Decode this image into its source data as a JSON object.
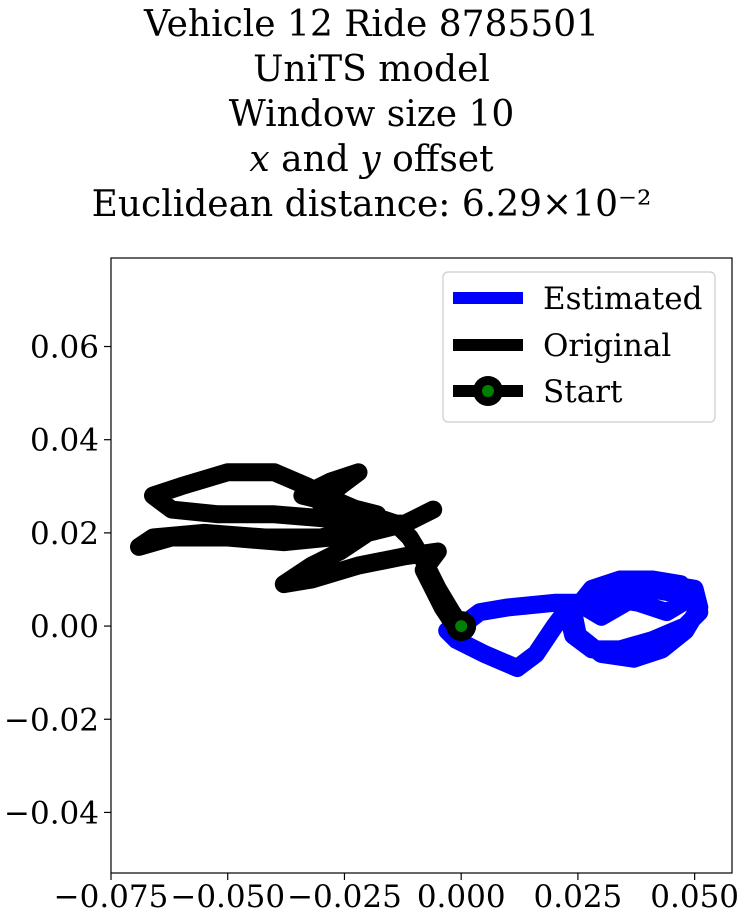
{
  "chart_data": {
    "type": "line",
    "title_lines": [
      "Vehicle 12 Ride 8785501",
      "UniTS model",
      "Window size 10",
      "x and y offset",
      "Euclidean distance: 6.29×10⁻²"
    ],
    "xlim": [
      -0.075,
      0.058
    ],
    "ylim": [
      -0.053,
      0.079
    ],
    "xticks": [
      -0.075,
      -0.05,
      -0.025,
      0.0,
      0.025,
      0.05
    ],
    "xtick_labels": [
      "−0.075",
      "−0.050",
      "−0.025",
      "0.000",
      "0.025",
      "0.050"
    ],
    "yticks": [
      -0.04,
      -0.02,
      0.0,
      0.02,
      0.04,
      0.06
    ],
    "ytick_labels": [
      "−0.04",
      "−0.02",
      "0.00",
      "0.02",
      "0.04",
      "0.06"
    ],
    "grid": false,
    "legend": {
      "placement": "top-right",
      "entries": [
        "Estimated",
        "Original",
        "Start"
      ]
    },
    "series": [
      {
        "name": "Estimated",
        "color": "#0000ff",
        "points": [
          [
            0.0,
            0.0
          ],
          [
            -0.003,
            -0.001
          ],
          [
            -0.001,
            -0.003
          ],
          [
            0.005,
            -0.006
          ],
          [
            0.012,
            -0.009
          ],
          [
            0.016,
            -0.006
          ],
          [
            0.02,
            0.0
          ],
          [
            0.023,
            0.004
          ],
          [
            0.028,
            0.006
          ],
          [
            0.034,
            0.008
          ],
          [
            0.04,
            0.008
          ],
          [
            0.046,
            0.007
          ],
          [
            0.05,
            0.005
          ],
          [
            0.051,
            0.003
          ],
          [
            0.048,
            0.0
          ],
          [
            0.041,
            -0.003
          ],
          [
            0.034,
            -0.005
          ],
          [
            0.028,
            -0.005
          ],
          [
            0.024,
            -0.002
          ],
          [
            0.023,
            0.002
          ],
          [
            0.026,
            0.005
          ],
          [
            0.032,
            0.006
          ],
          [
            0.038,
            0.005
          ],
          [
            0.044,
            0.003
          ],
          [
            0.049,
            0.006
          ],
          [
            0.047,
            0.009
          ],
          [
            0.041,
            0.01
          ],
          [
            0.034,
            0.01
          ],
          [
            0.028,
            0.008
          ],
          [
            0.024,
            0.003
          ],
          [
            0.025,
            -0.002
          ],
          [
            0.03,
            -0.006
          ],
          [
            0.037,
            -0.007
          ],
          [
            0.043,
            -0.005
          ],
          [
            0.048,
            -0.001
          ],
          [
            0.051,
            0.004
          ],
          [
            0.05,
            0.008
          ],
          [
            0.044,
            0.009
          ],
          [
            0.037,
            0.006
          ],
          [
            0.03,
            0.002
          ],
          [
            0.025,
            0.005
          ],
          [
            0.02,
            0.005
          ],
          [
            0.01,
            0.004
          ],
          [
            0.004,
            0.003
          ],
          [
            0.0,
            0.0
          ]
        ]
      },
      {
        "name": "Original",
        "color": "#000000",
        "points": [
          [
            0.0,
            0.0
          ],
          [
            -0.002,
            0.003
          ],
          [
            -0.005,
            0.008
          ],
          [
            -0.008,
            0.014
          ],
          [
            -0.011,
            0.019
          ],
          [
            -0.014,
            0.022
          ],
          [
            -0.02,
            0.024
          ],
          [
            -0.027,
            0.027
          ],
          [
            -0.033,
            0.03
          ],
          [
            -0.04,
            0.033
          ],
          [
            -0.05,
            0.033
          ],
          [
            -0.06,
            0.03
          ],
          [
            -0.066,
            0.028
          ],
          [
            -0.062,
            0.025
          ],
          [
            -0.052,
            0.024
          ],
          [
            -0.04,
            0.024
          ],
          [
            -0.028,
            0.023
          ],
          [
            -0.022,
            0.021
          ],
          [
            -0.03,
            0.019
          ],
          [
            -0.042,
            0.019
          ],
          [
            -0.055,
            0.02
          ],
          [
            -0.066,
            0.019
          ],
          [
            -0.069,
            0.017
          ],
          [
            -0.062,
            0.019
          ],
          [
            -0.05,
            0.019
          ],
          [
            -0.038,
            0.018
          ],
          [
            -0.028,
            0.019
          ],
          [
            -0.02,
            0.021
          ],
          [
            -0.018,
            0.024
          ],
          [
            -0.026,
            0.026
          ],
          [
            -0.034,
            0.028
          ],
          [
            -0.028,
            0.031
          ],
          [
            -0.022,
            0.033
          ],
          [
            -0.026,
            0.03
          ],
          [
            -0.03,
            0.026
          ],
          [
            -0.024,
            0.024
          ],
          [
            -0.018,
            0.022
          ],
          [
            -0.012,
            0.022
          ],
          [
            -0.006,
            0.025
          ],
          [
            -0.012,
            0.022
          ],
          [
            -0.02,
            0.02
          ],
          [
            -0.026,
            0.016
          ],
          [
            -0.032,
            0.013
          ],
          [
            -0.038,
            0.009
          ],
          [
            -0.032,
            0.01
          ],
          [
            -0.022,
            0.013
          ],
          [
            -0.012,
            0.015
          ],
          [
            -0.005,
            0.016
          ],
          [
            -0.008,
            0.012
          ],
          [
            -0.006,
            0.008
          ],
          [
            -0.004,
            0.004
          ],
          [
            -0.002,
            0.001
          ],
          [
            0.0,
            0.0
          ]
        ]
      },
      {
        "name": "Start",
        "color": "#000000",
        "marker_color": "#008000",
        "points": [
          [
            0.0,
            0.0
          ]
        ]
      }
    ]
  }
}
